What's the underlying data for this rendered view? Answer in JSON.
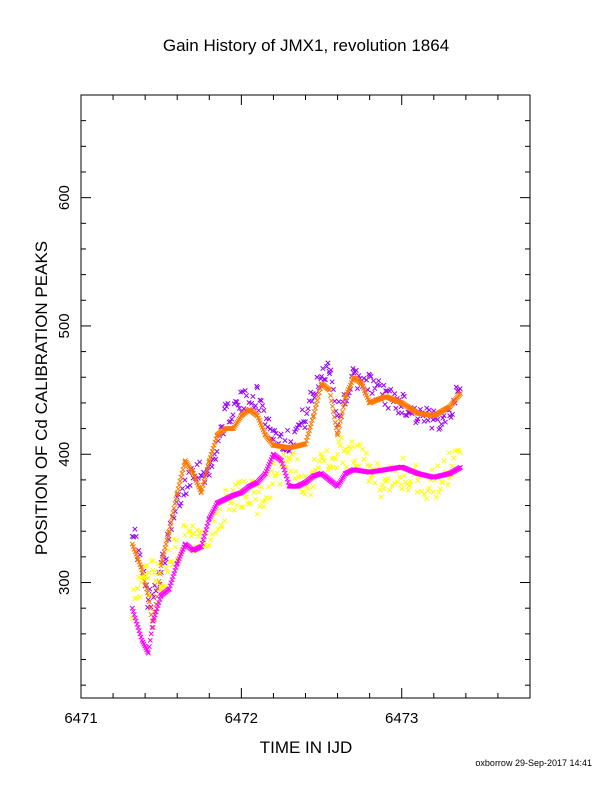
{
  "chart_data": {
    "type": "scatter",
    "title": "Gain History of JMX1, revolution 1864",
    "xlabel": "TIME IN IJD",
    "ylabel": "POSITION OF Cd CALIBRATION PEAKS",
    "xlim": [
      6471.0,
      6473.8
    ],
    "ylim": [
      210,
      680
    ],
    "x_ticks": [
      6471,
      6472,
      6473
    ],
    "x_tick_labels": [
      "6471",
      "6472",
      "6473"
    ],
    "y_ticks": [
      300,
      400,
      500,
      600
    ],
    "y_tick_labels": [
      "300",
      "400",
      "500",
      "600"
    ],
    "grid": false,
    "legend": "none",
    "marker": "x",
    "series": [
      {
        "color": "#9900ff",
        "points": [
          [
            6471.32,
            345
          ],
          [
            6471.42,
            285
          ],
          [
            6471.5,
            310
          ],
          [
            6471.6,
            360
          ],
          [
            6471.7,
            390
          ],
          [
            6471.8,
            385
          ],
          [
            6471.9,
            430
          ],
          [
            6472.0,
            440
          ],
          [
            6472.1,
            445
          ],
          [
            6472.2,
            415
          ],
          [
            6472.3,
            410
          ],
          [
            6472.4,
            430
          ],
          [
            6472.5,
            462
          ],
          [
            6472.55,
            470
          ],
          [
            6472.6,
            430
          ],
          [
            6472.7,
            460
          ],
          [
            6472.8,
            455
          ],
          [
            6472.9,
            445
          ],
          [
            6473.0,
            440
          ],
          [
            6473.1,
            430
          ],
          [
            6473.2,
            425
          ],
          [
            6473.3,
            435
          ],
          [
            6473.37,
            450
          ]
        ]
      },
      {
        "color": "#ff7700",
        "points": [
          [
            6471.32,
            330
          ],
          [
            6471.38,
            310
          ],
          [
            6471.42,
            290
          ],
          [
            6471.45,
            265
          ],
          [
            6471.5,
            315
          ],
          [
            6471.55,
            340
          ],
          [
            6471.6,
            370
          ],
          [
            6471.65,
            395
          ],
          [
            6471.7,
            385
          ],
          [
            6471.75,
            370
          ],
          [
            6471.8,
            395
          ],
          [
            6471.85,
            415
          ],
          [
            6471.9,
            420
          ],
          [
            6471.95,
            420
          ],
          [
            6472.0,
            430
          ],
          [
            6472.05,
            435
          ],
          [
            6472.1,
            430
          ],
          [
            6472.15,
            415
          ],
          [
            6472.2,
            407
          ],
          [
            6472.3,
            405
          ],
          [
            6472.4,
            408
          ],
          [
            6472.45,
            430
          ],
          [
            6472.5,
            455
          ],
          [
            6472.55,
            450
          ],
          [
            6472.6,
            415
          ],
          [
            6472.65,
            445
          ],
          [
            6472.7,
            460
          ],
          [
            6472.75,
            455
          ],
          [
            6472.8,
            440
          ],
          [
            6472.9,
            445
          ],
          [
            6473.0,
            440
          ],
          [
            6473.1,
            432
          ],
          [
            6473.2,
            430
          ],
          [
            6473.3,
            437
          ],
          [
            6473.37,
            448
          ]
        ]
      },
      {
        "color": "#ffff00",
        "points": [
          [
            6471.32,
            285
          ],
          [
            6471.4,
            300
          ],
          [
            6471.45,
            305
          ],
          [
            6471.5,
            300
          ],
          [
            6471.6,
            330
          ],
          [
            6471.7,
            335
          ],
          [
            6471.8,
            340
          ],
          [
            6471.9,
            360
          ],
          [
            6472.0,
            370
          ],
          [
            6472.1,
            365
          ],
          [
            6472.2,
            380
          ],
          [
            6472.3,
            395
          ],
          [
            6472.4,
            375
          ],
          [
            6472.5,
            390
          ],
          [
            6472.6,
            400
          ],
          [
            6472.7,
            405
          ],
          [
            6472.8,
            390
          ],
          [
            6472.9,
            375
          ],
          [
            6473.0,
            385
          ],
          [
            6473.1,
            380
          ],
          [
            6473.2,
            375
          ],
          [
            6473.3,
            390
          ],
          [
            6473.37,
            395
          ]
        ]
      },
      {
        "color": "#ff00ff",
        "points": [
          [
            6471.32,
            280
          ],
          [
            6471.38,
            255
          ],
          [
            6471.42,
            245
          ],
          [
            6471.45,
            270
          ],
          [
            6471.5,
            290
          ],
          [
            6471.55,
            295
          ],
          [
            6471.6,
            315
          ],
          [
            6471.65,
            330
          ],
          [
            6471.7,
            325
          ],
          [
            6471.75,
            328
          ],
          [
            6471.8,
            350
          ],
          [
            6471.85,
            362
          ],
          [
            6471.9,
            365
          ],
          [
            6471.95,
            368
          ],
          [
            6472.0,
            370
          ],
          [
            6472.05,
            375
          ],
          [
            6472.1,
            378
          ],
          [
            6472.15,
            385
          ],
          [
            6472.2,
            400
          ],
          [
            6472.25,
            395
          ],
          [
            6472.3,
            375
          ],
          [
            6472.35,
            375
          ],
          [
            6472.4,
            378
          ],
          [
            6472.45,
            383
          ],
          [
            6472.5,
            385
          ],
          [
            6472.55,
            380
          ],
          [
            6472.6,
            375
          ],
          [
            6472.65,
            385
          ],
          [
            6472.7,
            388
          ],
          [
            6472.8,
            386
          ],
          [
            6472.9,
            388
          ],
          [
            6473.0,
            390
          ],
          [
            6473.1,
            385
          ],
          [
            6473.2,
            382
          ],
          [
            6473.3,
            385
          ],
          [
            6473.37,
            390
          ]
        ]
      }
    ]
  },
  "footer": {
    "credit": "oxborrow 29-Sep-2017 14:41"
  }
}
